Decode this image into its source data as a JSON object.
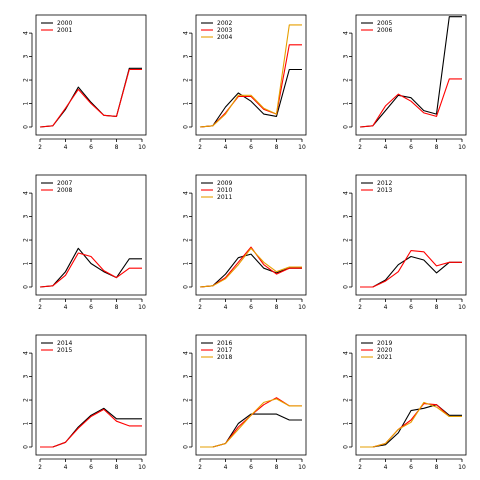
{
  "chart_data": [
    {
      "type": "line",
      "x": [
        2,
        3,
        4,
        5,
        6,
        7,
        8,
        9,
        10
      ],
      "xlim": [
        2,
        10
      ],
      "ylim": [
        0,
        4.6
      ],
      "xticks": [
        2,
        4,
        6,
        8,
        10
      ],
      "yticks": [
        0,
        1,
        2,
        3,
        4
      ],
      "legend": "top-left",
      "series": [
        {
          "name": "2000",
          "color": "#000000",
          "values": [
            0.0,
            0.05,
            0.75,
            1.7,
            1.05,
            0.5,
            0.45,
            2.5,
            2.5
          ]
        },
        {
          "name": "2001",
          "color": "#ff0000",
          "values": [
            0.0,
            0.05,
            0.8,
            1.6,
            1.0,
            0.5,
            0.45,
            2.45,
            2.45
          ]
        }
      ]
    },
    {
      "type": "line",
      "x": [
        2,
        3,
        4,
        5,
        6,
        7,
        8,
        9,
        10
      ],
      "xlim": [
        2,
        10
      ],
      "ylim": [
        0,
        4.6
      ],
      "xticks": [
        2,
        4,
        6,
        8,
        10
      ],
      "yticks": [
        0,
        1,
        2,
        3,
        4
      ],
      "legend": "top-left",
      "series": [
        {
          "name": "2002",
          "color": "#000000",
          "values": [
            0.0,
            0.05,
            0.85,
            1.45,
            1.1,
            0.55,
            0.45,
            2.45,
            2.45
          ]
        },
        {
          "name": "2003",
          "color": "#ff0000",
          "values": [
            0.0,
            0.05,
            0.6,
            1.3,
            1.3,
            0.75,
            0.55,
            3.5,
            3.5
          ]
        },
        {
          "name": "2004",
          "color": "#e69f00",
          "values": [
            0.0,
            0.05,
            0.55,
            1.35,
            1.35,
            0.8,
            0.55,
            4.35,
            4.35
          ]
        }
      ]
    },
    {
      "type": "line",
      "x": [
        2,
        3,
        4,
        5,
        6,
        7,
        8,
        9,
        10
      ],
      "xlim": [
        2,
        10
      ],
      "ylim": [
        0,
        4.6
      ],
      "xticks": [
        2,
        4,
        6,
        8,
        10
      ],
      "yticks": [
        0,
        1,
        2,
        3,
        4
      ],
      "legend": "top-left",
      "series": [
        {
          "name": "2005",
          "color": "#000000",
          "values": [
            0.0,
            0.05,
            0.7,
            1.35,
            1.25,
            0.7,
            0.55,
            4.7,
            4.7
          ]
        },
        {
          "name": "2006",
          "color": "#ff0000",
          "values": [
            0.0,
            0.05,
            0.9,
            1.4,
            1.1,
            0.6,
            0.45,
            2.05,
            2.05
          ]
        }
      ]
    },
    {
      "type": "line",
      "x": [
        2,
        3,
        4,
        5,
        6,
        7,
        8,
        9,
        10
      ],
      "xlim": [
        2,
        10
      ],
      "ylim": [
        0,
        4.6
      ],
      "xticks": [
        2,
        4,
        6,
        8,
        10
      ],
      "yticks": [
        0,
        1,
        2,
        3,
        4
      ],
      "legend": "top-left",
      "series": [
        {
          "name": "2007",
          "color": "#000000",
          "values": [
            0.0,
            0.05,
            0.65,
            1.65,
            1.0,
            0.65,
            0.4,
            1.2,
            1.2
          ]
        },
        {
          "name": "2008",
          "color": "#ff0000",
          "values": [
            0.0,
            0.05,
            0.5,
            1.45,
            1.3,
            0.7,
            0.4,
            0.8,
            0.8
          ]
        }
      ]
    },
    {
      "type": "line",
      "x": [
        2,
        3,
        4,
        5,
        6,
        7,
        8,
        9,
        10
      ],
      "xlim": [
        2,
        10
      ],
      "ylim": [
        0,
        4.6
      ],
      "xticks": [
        2,
        4,
        6,
        8,
        10
      ],
      "yticks": [
        0,
        1,
        2,
        3,
        4
      ],
      "legend": "top-left",
      "series": [
        {
          "name": "2009",
          "color": "#000000",
          "values": [
            0.0,
            0.05,
            0.55,
            1.25,
            1.4,
            0.8,
            0.6,
            0.8,
            0.8
          ]
        },
        {
          "name": "2010",
          "color": "#ff0000",
          "values": [
            0.0,
            0.05,
            0.4,
            1.05,
            1.7,
            0.95,
            0.55,
            0.8,
            0.8
          ]
        },
        {
          "name": "2011",
          "color": "#e69f00",
          "values": [
            0.0,
            0.05,
            0.35,
            0.95,
            1.65,
            1.05,
            0.65,
            0.85,
            0.85
          ]
        }
      ]
    },
    {
      "type": "line",
      "x": [
        2,
        3,
        4,
        5,
        6,
        7,
        8,
        9,
        10
      ],
      "xlim": [
        2,
        10
      ],
      "ylim": [
        0,
        4.6
      ],
      "xticks": [
        2,
        4,
        6,
        8,
        10
      ],
      "yticks": [
        0,
        1,
        2,
        3,
        4
      ],
      "legend": "top-left",
      "series": [
        {
          "name": "2012",
          "color": "#000000",
          "values": [
            0.0,
            0.0,
            0.3,
            0.95,
            1.3,
            1.15,
            0.6,
            1.05,
            1.05
          ]
        },
        {
          "name": "2013",
          "color": "#ff0000",
          "values": [
            0.0,
            0.0,
            0.25,
            0.65,
            1.55,
            1.5,
            0.9,
            1.05,
            1.05
          ]
        }
      ]
    },
    {
      "type": "line",
      "x": [
        2,
        3,
        4,
        5,
        6,
        7,
        8,
        9,
        10
      ],
      "xlim": [
        2,
        10
      ],
      "ylim": [
        0,
        4.6
      ],
      "xticks": [
        2,
        4,
        6,
        8,
        10
      ],
      "yticks": [
        0,
        1,
        2,
        3,
        4
      ],
      "legend": "top-left",
      "series": [
        {
          "name": "2014",
          "color": "#000000",
          "values": [
            0.0,
            0.0,
            0.2,
            0.85,
            1.35,
            1.65,
            1.2,
            1.2,
            1.2
          ]
        },
        {
          "name": "2015",
          "color": "#ff0000",
          "values": [
            0.0,
            0.0,
            0.2,
            0.8,
            1.3,
            1.6,
            1.1,
            0.9,
            0.9
          ]
        }
      ]
    },
    {
      "type": "line",
      "x": [
        2,
        3,
        4,
        5,
        6,
        7,
        8,
        9,
        10
      ],
      "xlim": [
        2,
        10
      ],
      "ylim": [
        0,
        4.6
      ],
      "xticks": [
        2,
        4,
        6,
        8,
        10
      ],
      "yticks": [
        0,
        1,
        2,
        3,
        4
      ],
      "legend": "top-left",
      "series": [
        {
          "name": "2016",
          "color": "#000000",
          "values": [
            0.0,
            0.0,
            0.15,
            1.0,
            1.4,
            1.4,
            1.4,
            1.15,
            1.15
          ]
        },
        {
          "name": "2017",
          "color": "#ff0000",
          "values": [
            0.0,
            0.0,
            0.15,
            0.85,
            1.35,
            1.8,
            2.1,
            1.75,
            1.75
          ]
        },
        {
          "name": "2018",
          "color": "#e69f00",
          "values": [
            0.0,
            0.0,
            0.15,
            0.75,
            1.35,
            1.9,
            2.05,
            1.75,
            1.75
          ]
        }
      ]
    },
    {
      "type": "line",
      "x": [
        2,
        3,
        4,
        5,
        6,
        7,
        8,
        9,
        10
      ],
      "xlim": [
        2,
        10
      ],
      "ylim": [
        0,
        4.6
      ],
      "xticks": [
        2,
        4,
        6,
        8,
        10
      ],
      "yticks": [
        0,
        1,
        2,
        3,
        4
      ],
      "legend": "top-left",
      "series": [
        {
          "name": "2019",
          "color": "#000000",
          "values": [
            0.0,
            0.0,
            0.1,
            0.6,
            1.55,
            1.65,
            1.8,
            1.35,
            1.35
          ]
        },
        {
          "name": "2020",
          "color": "#ff0000",
          "values": [
            0.0,
            0.0,
            0.15,
            0.75,
            1.15,
            1.85,
            1.8,
            1.3,
            1.3
          ]
        },
        {
          "name": "2021",
          "color": "#e69f00",
          "values": [
            0.0,
            0.0,
            0.15,
            0.75,
            1.05,
            1.9,
            1.7,
            1.3,
            1.3
          ]
        }
      ]
    }
  ]
}
